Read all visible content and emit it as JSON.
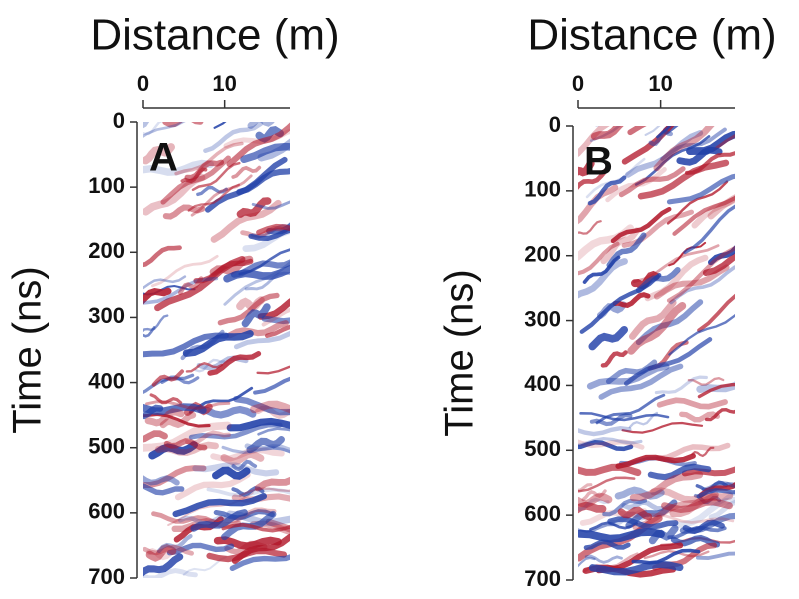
{
  "chart_data": [
    {
      "type": "radargram",
      "annotation": "A",
      "xlabel": "Distance (m)",
      "ylabel": "Time (ns)",
      "xlim": [
        0,
        18
      ],
      "xticks": [
        0,
        10
      ],
      "ylim": [
        0,
        700
      ],
      "yticks": [
        0,
        100,
        200,
        300,
        400,
        500,
        600,
        700
      ],
      "y_inverted": true,
      "x_axis_top": true,
      "colors": [
        "#b2182b",
        "#2140a8"
      ]
    },
    {
      "type": "radargram",
      "annotation": "B",
      "xlabel": "Distance (m)",
      "ylabel": "Time (ns)",
      "xlim": [
        0,
        19
      ],
      "xticks": [
        0,
        10
      ],
      "ylim": [
        0,
        700
      ],
      "yticks": [
        0,
        100,
        200,
        300,
        400,
        500,
        600,
        700
      ],
      "y_inverted": true,
      "x_axis_top": true,
      "colors": [
        "#b2182b",
        "#2140a8"
      ]
    }
  ]
}
